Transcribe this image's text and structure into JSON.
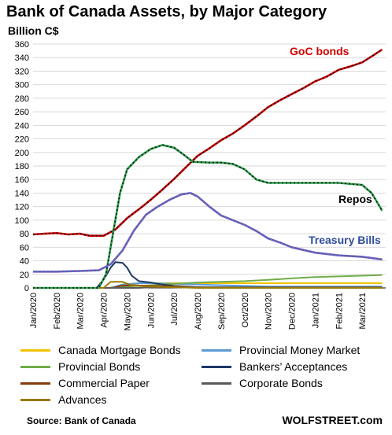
{
  "title": "Bank of Canada Assets, by Major Category",
  "unit_label": "Billion C$",
  "source": "Source: Bank of Canada",
  "brand": "WOLFSTREET.com",
  "chart_data": {
    "type": "line",
    "ylim": [
      0,
      360
    ],
    "yticks": [
      0,
      20,
      40,
      60,
      80,
      100,
      120,
      140,
      160,
      180,
      200,
      220,
      240,
      260,
      280,
      300,
      320,
      340,
      360
    ],
    "ytick_labels": [
      "0",
      "20",
      "40",
      "60",
      "80",
      "100",
      "120",
      "140",
      "160",
      "180",
      "200",
      "220",
      "240",
      "260",
      "280",
      "300",
      "320",
      "340",
      "360"
    ],
    "x_categories": [
      "Jan/2020",
      "Feb/2020",
      "Mar/2020",
      "Apr/2020",
      "May/2020",
      "Jun/2020",
      "Jul/2020",
      "Aug/2020",
      "Sep/2020",
      "Oct/2020",
      "Nov/2020",
      "Dec/2020",
      "Jan/2021",
      "Feb/2021",
      "Mar/2021"
    ],
    "grid": true,
    "legend_placement": "bottom",
    "series": [
      {
        "name": "GoC bonds",
        "label": "GoC bonds",
        "color": "#d40000",
        "dash_color": "#111111",
        "width": 2.6,
        "legend": false,
        "points": [
          [
            0,
            79
          ],
          [
            0.5,
            80
          ],
          [
            1,
            81
          ],
          [
            1.5,
            79
          ],
          [
            2,
            80
          ],
          [
            2.4,
            77
          ],
          [
            3,
            77
          ],
          [
            3.5,
            86
          ],
          [
            4,
            103
          ],
          [
            4.5,
            116
          ],
          [
            5,
            130
          ],
          [
            5.5,
            145
          ],
          [
            6,
            161
          ],
          [
            6.5,
            178
          ],
          [
            7,
            195
          ],
          [
            7.5,
            206
          ],
          [
            8,
            218
          ],
          [
            8.5,
            228
          ],
          [
            9,
            240
          ],
          [
            9.5,
            253
          ],
          [
            10,
            267
          ],
          [
            10.5,
            277
          ],
          [
            11,
            286
          ],
          [
            11.5,
            295
          ],
          [
            12,
            305
          ],
          [
            12.5,
            312
          ],
          [
            13,
            322
          ],
          [
            13.5,
            327
          ],
          [
            14,
            333
          ],
          [
            14.5,
            344
          ],
          [
            14.85,
            352
          ]
        ]
      },
      {
        "name": "Repos",
        "label": "Repos",
        "color": "#2a9f4a",
        "dash_color": "#111111",
        "width": 2.6,
        "legend": false,
        "points": [
          [
            0,
            0
          ],
          [
            2.8,
            0
          ],
          [
            3.1,
            20
          ],
          [
            3.4,
            80
          ],
          [
            3.7,
            140
          ],
          [
            4,
            175
          ],
          [
            4.5,
            193
          ],
          [
            5,
            205
          ],
          [
            5.5,
            211
          ],
          [
            6,
            207
          ],
          [
            6.4,
            197
          ],
          [
            6.8,
            186
          ],
          [
            7.5,
            185
          ],
          [
            8,
            185
          ],
          [
            8.5,
            183
          ],
          [
            9,
            175
          ],
          [
            9.5,
            160
          ],
          [
            10,
            155
          ],
          [
            11,
            155
          ],
          [
            12,
            155
          ],
          [
            13,
            155
          ],
          [
            14,
            152
          ],
          [
            14.4,
            140
          ],
          [
            14.85,
            114
          ]
        ]
      },
      {
        "name": "Treasury Bills",
        "label": "Treasury Bills",
        "color": "#7a4fb5",
        "dash_color": "#2e8fbf",
        "width": 2.6,
        "legend": false,
        "points": [
          [
            0,
            24
          ],
          [
            1,
            24
          ],
          [
            2,
            25
          ],
          [
            2.8,
            26
          ],
          [
            3.3,
            35
          ],
          [
            3.8,
            55
          ],
          [
            4.3,
            85
          ],
          [
            4.8,
            108
          ],
          [
            5.3,
            120
          ],
          [
            5.8,
            130
          ],
          [
            6.3,
            138
          ],
          [
            6.7,
            140
          ],
          [
            7,
            135
          ],
          [
            7.5,
            120
          ],
          [
            8,
            107
          ],
          [
            8.5,
            100
          ],
          [
            9,
            93
          ],
          [
            9.5,
            84
          ],
          [
            10,
            73
          ],
          [
            10.5,
            67
          ],
          [
            11,
            60
          ],
          [
            11.5,
            56
          ],
          [
            12,
            52
          ],
          [
            13,
            48
          ],
          [
            14,
            46
          ],
          [
            14.85,
            42
          ]
        ]
      },
      {
        "name": "Canada Mortgage Bonds",
        "color": "#f2c200",
        "width": 2,
        "legend": true,
        "points": [
          [
            0,
            0
          ],
          [
            3.2,
            0
          ],
          [
            3.7,
            3
          ],
          [
            4.5,
            7
          ],
          [
            6,
            7
          ],
          [
            8,
            7
          ],
          [
            10,
            7
          ],
          [
            12,
            7
          ],
          [
            14,
            7
          ],
          [
            14.85,
            7
          ]
        ]
      },
      {
        "name": "Provincial Money Market",
        "color": "#5b9bd5",
        "width": 2,
        "legend": true,
        "points": [
          [
            0,
            0
          ],
          [
            3.3,
            0
          ],
          [
            3.8,
            5
          ],
          [
            4.5,
            7
          ],
          [
            5,
            7
          ],
          [
            6,
            6
          ],
          [
            7,
            5
          ],
          [
            8,
            4
          ],
          [
            9,
            3
          ],
          [
            10,
            2
          ],
          [
            12,
            2
          ],
          [
            14.85,
            2
          ]
        ]
      },
      {
        "name": "Provincial Bonds",
        "color": "#70ad47",
        "width": 2,
        "legend": true,
        "points": [
          [
            0,
            0
          ],
          [
            3.5,
            0
          ],
          [
            4,
            2
          ],
          [
            5,
            4
          ],
          [
            6,
            6
          ],
          [
            7,
            8
          ],
          [
            8,
            9
          ],
          [
            9,
            10
          ],
          [
            10,
            12
          ],
          [
            11,
            14
          ],
          [
            12,
            16
          ],
          [
            13,
            17
          ],
          [
            14,
            18
          ],
          [
            14.85,
            19
          ]
        ]
      },
      {
        "name": "Bankers’ Acceptances",
        "color": "#1f3864",
        "width": 2,
        "legend": true,
        "points": [
          [
            0,
            0
          ],
          [
            2.7,
            0
          ],
          [
            3,
            12
          ],
          [
            3.3,
            30
          ],
          [
            3.5,
            38
          ],
          [
            3.8,
            37
          ],
          [
            4,
            30
          ],
          [
            4.2,
            18
          ],
          [
            4.5,
            10
          ],
          [
            5,
            8
          ],
          [
            5.5,
            5
          ],
          [
            6,
            3
          ],
          [
            6.5,
            2
          ],
          [
            7,
            1
          ],
          [
            8,
            0
          ],
          [
            14.85,
            0
          ]
        ]
      },
      {
        "name": "Commercial Paper",
        "color": "#843c0c",
        "width": 2,
        "legend": true,
        "points": [
          [
            0,
            0
          ],
          [
            3.4,
            0
          ],
          [
            3.7,
            3
          ],
          [
            4.2,
            4
          ],
          [
            5,
            3
          ],
          [
            6,
            2
          ],
          [
            7,
            1
          ],
          [
            8,
            0
          ],
          [
            14.85,
            0
          ]
        ]
      },
      {
        "name": "Corporate Bonds",
        "color": "#595959",
        "width": 2,
        "legend": true,
        "points": [
          [
            0,
            0
          ],
          [
            4.5,
            0
          ],
          [
            5,
            1
          ],
          [
            14.85,
            1
          ]
        ]
      },
      {
        "name": "Advances",
        "color": "#9c7a00",
        "width": 2,
        "legend": true,
        "points": [
          [
            0,
            0
          ],
          [
            3,
            0
          ],
          [
            3.3,
            9
          ],
          [
            3.8,
            9
          ],
          [
            4.1,
            5
          ],
          [
            4.4,
            3
          ],
          [
            5,
            2
          ],
          [
            6,
            1
          ],
          [
            7,
            0
          ],
          [
            14.85,
            0
          ]
        ]
      }
    ]
  }
}
